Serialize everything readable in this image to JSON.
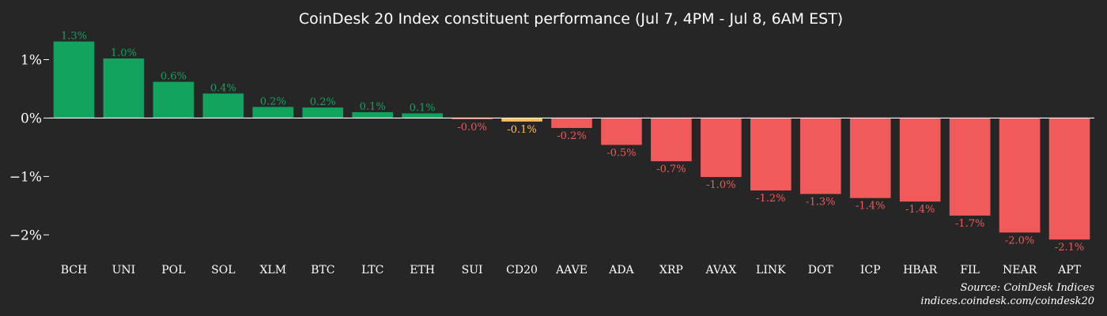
{
  "chart_data": {
    "type": "bar",
    "title": "CoinDesk 20 Index constituent performance (Jul 7, 4PM - Jul 8, 6AM EST)",
    "categories": [
      "BCH",
      "UNI",
      "POL",
      "SOL",
      "XLM",
      "BTC",
      "LTC",
      "ETH",
      "SUI",
      "CD20",
      "AAVE",
      "ADA",
      "XRP",
      "AVAX",
      "LINK",
      "DOT",
      "ICP",
      "HBAR",
      "FIL",
      "NEAR",
      "APT"
    ],
    "values": [
      1.31,
      1.02,
      0.62,
      0.42,
      0.19,
      0.18,
      0.1,
      0.08,
      -0.02,
      -0.06,
      -0.17,
      -0.46,
      -0.74,
      -1.01,
      -1.24,
      -1.3,
      -1.37,
      -1.43,
      -1.67,
      -1.96,
      -2.08
    ],
    "data_labels": [
      "1.3%",
      "1.0%",
      "0.6%",
      "0.4%",
      "0.2%",
      "0.2%",
      "0.1%",
      "0.1%",
      "-0.0%",
      "-0.1%",
      "-0.2%",
      "-0.5%",
      "-0.7%",
      "-1.0%",
      "-1.2%",
      "-1.3%",
      "-1.4%",
      "-1.4%",
      "-1.7%",
      "-2.0%",
      "-2.1%"
    ],
    "highlight_category": "CD20",
    "yticks": [
      1,
      0,
      -1,
      -2
    ],
    "ytick_labels": [
      "1%",
      "0%",
      "−1%",
      "−2%"
    ],
    "ylim": [
      -2.28,
      1.48
    ],
    "xlabel": "",
    "ylabel": "",
    "grid": false,
    "colors": {
      "positive": "#12a35e",
      "negative": "#f05a5a",
      "highlight": "#ffbf57",
      "background": "#262626",
      "text": "#ffffff"
    }
  },
  "source": {
    "line1": "Source: CoinDesk Indices",
    "line2": "indices.coindesk.com/coindesk20"
  }
}
